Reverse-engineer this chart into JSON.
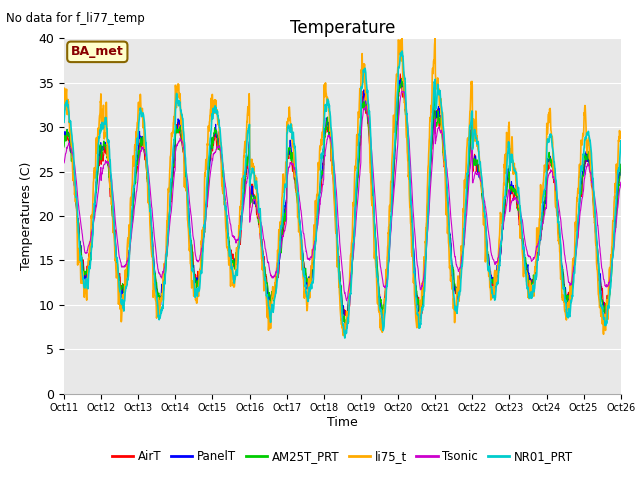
{
  "title": "Temperature",
  "ylabel": "Temperatures (C)",
  "xlabel": "Time",
  "annotation_text": "No data for f_li77_temp",
  "ba_met_label": "BA_met",
  "ylim": [
    0,
    40
  ],
  "yticks": [
    0,
    5,
    10,
    15,
    20,
    25,
    30,
    35,
    40
  ],
  "xtick_labels": [
    "Oct 11",
    "Oct 12",
    "Oct 13",
    "Oct 14",
    "Oct 15",
    "Oct 16",
    "Oct 17",
    "Oct 18",
    "Oct 19",
    "Oct 20",
    "Oct 21",
    "Oct 22",
    "Oct 23",
    "Oct 24",
    "Oct 25",
    "Oct 26"
  ],
  "bg_color": "#e8e8e8",
  "fig_color": "#ffffff",
  "series": [
    {
      "name": "AirT",
      "color": "#ff0000",
      "lw": 0.8
    },
    {
      "name": "PanelT",
      "color": "#0000ff",
      "lw": 0.8
    },
    {
      "name": "AM25T_PRT",
      "color": "#00cc00",
      "lw": 0.8
    },
    {
      "name": "li75_t",
      "color": "#ffaa00",
      "lw": 1.2
    },
    {
      "name": "Tsonic",
      "color": "#cc00cc",
      "lw": 0.8
    },
    {
      "name": "NR01_PRT",
      "color": "#00cccc",
      "lw": 1.2
    }
  ]
}
